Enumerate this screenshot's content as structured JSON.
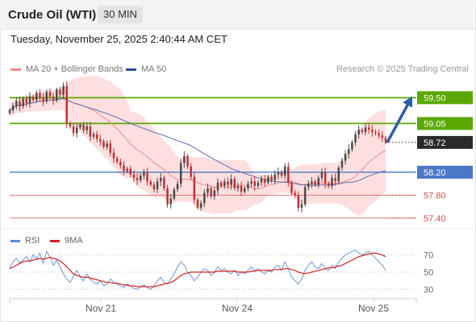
{
  "header": {
    "title": "Crude Oil (WTI)",
    "timeframe": "30 MIN",
    "timestamp": "Tuesday, November 25, 2025 2:40:44 AM CET"
  },
  "legend": {
    "items": [
      {
        "label": "MA 20 + Bollinger Bands",
        "color": "#f08c8c"
      },
      {
        "label": "MA 50",
        "color": "#2a4f8f"
      }
    ],
    "credit": "Research © 2025 Trading Central"
  },
  "sub_legend": {
    "items": [
      {
        "label": "RSI",
        "color": "#5b86d6"
      },
      {
        "label": "9MA",
        "color": "#d42020"
      }
    ]
  },
  "colors": {
    "up_candle": "#4a4a4a",
    "down_candle": "#c03030",
    "bollinger_fill": "#fdd9d9",
    "ma20": "#f08c8c",
    "ma50": "#5b6fb0",
    "resistance": "#5aa800",
    "pivot": "#4a78c8",
    "support": "#d85050",
    "arrow": "#2b5fa8",
    "current_price_bg": "#2b2b2b",
    "rsi": "#6f96da",
    "rsi_ma": "#d42020"
  },
  "chart_data": [
    {
      "type": "candlestick",
      "title": "Crude Oil (WTI)",
      "timeframe": "30 MIN",
      "x_ticks": [
        "Nov 21",
        "Nov 24",
        "Nov 25"
      ],
      "ylim": [
        57.3,
        59.8
      ],
      "levels": [
        {
          "value": 59.5,
          "label": "59.50",
          "kind": "resistance"
        },
        {
          "value": 59.05,
          "label": "59.05",
          "kind": "resistance"
        },
        {
          "value": 58.72,
          "label": "58.72",
          "kind": "current"
        },
        {
          "value": 58.2,
          "label": "58.20",
          "kind": "pivot"
        },
        {
          "value": 57.8,
          "label": "57.80",
          "kind": "support"
        },
        {
          "value": 57.4,
          "label": "57.40",
          "kind": "support"
        }
      ],
      "projection": {
        "from": 58.72,
        "to": 59.5
      },
      "closes": [
        59.28,
        59.36,
        59.44,
        59.35,
        59.48,
        59.4,
        59.52,
        59.46,
        59.58,
        59.5,
        59.44,
        59.6,
        59.52,
        59.45,
        59.64,
        59.55,
        59.7,
        59.05,
        59.0,
        58.88,
        58.98,
        59.03,
        58.93,
        59.0,
        58.82,
        58.86,
        58.78,
        58.74,
        58.64,
        58.7,
        58.54,
        58.44,
        58.38,
        58.32,
        58.22,
        58.26,
        58.16,
        58.1,
        58.06,
        58.14,
        58.2,
        58.04,
        57.98,
        57.9,
        58.04,
        58.1,
        57.92,
        57.64,
        57.74,
        57.9,
        58.0,
        58.36,
        58.48,
        58.3,
        58.12,
        57.72,
        57.58,
        57.66,
        57.84,
        57.92,
        57.78,
        57.88,
        58.02,
        57.96,
        58.04,
        57.98,
        58.08,
        57.92,
        57.96,
        57.86,
        57.92,
        58.0,
        58.04,
        57.96,
        58.02,
        58.08,
        58.02,
        58.12,
        58.06,
        58.16,
        58.2,
        58.14,
        58.3,
        58.02,
        57.84,
        57.8,
        57.58,
        57.64,
        57.94,
        58.0,
        58.04,
        57.98,
        58.1,
        58.2,
        58.0,
        57.96,
        58.1,
        58.04,
        58.28,
        58.4,
        58.52,
        58.6,
        58.72,
        58.86,
        58.94,
        58.9,
        58.98,
        58.94,
        58.9,
        58.88,
        58.84,
        58.8,
        58.72
      ]
    },
    {
      "type": "line",
      "title": "RSI",
      "series": [
        {
          "name": "RSI",
          "values": [
            55,
            62,
            66,
            60,
            64,
            68,
            62,
            70,
            66,
            72,
            60,
            74,
            68,
            58,
            64,
            56,
            48,
            42,
            38,
            45,
            52,
            44,
            40,
            48,
            42,
            38,
            36,
            40,
            34,
            36,
            42,
            38,
            36,
            34,
            32,
            36,
            34,
            31,
            30,
            33,
            35,
            32,
            30,
            34,
            40,
            44,
            38,
            36,
            42,
            48,
            56,
            62,
            58,
            50,
            46,
            40,
            44,
            50,
            54,
            52,
            46,
            50,
            56,
            52,
            54,
            50,
            48,
            52,
            46,
            50,
            48,
            52,
            56,
            52,
            54,
            50,
            48,
            52,
            50,
            56,
            58,
            52,
            62,
            54,
            44,
            40,
            36,
            42,
            52,
            58,
            62,
            56,
            54,
            60,
            54,
            52,
            58,
            54,
            62,
            66,
            70,
            72,
            74,
            76,
            72,
            70,
            72,
            74,
            70,
            66,
            62,
            58,
            52
          ]
        },
        {
          "name": "9MA",
          "values": [
            54,
            56,
            58,
            60,
            62,
            63,
            63,
            64,
            65,
            66,
            65,
            66,
            67,
            66,
            65,
            63,
            60,
            56,
            52,
            48,
            46,
            45,
            44,
            44,
            43,
            42,
            41,
            40,
            39,
            38,
            38,
            37,
            37,
            36,
            35,
            35,
            34,
            34,
            33,
            33,
            33,
            33,
            33,
            33,
            34,
            35,
            36,
            37,
            38,
            40,
            43,
            46,
            48,
            49,
            50,
            50,
            50,
            50,
            50,
            50,
            50,
            50,
            51,
            51,
            51,
            51,
            51,
            51,
            50,
            50,
            50,
            50,
            51,
            51,
            52,
            52,
            52,
            52,
            52,
            53,
            53,
            53,
            54,
            54,
            53,
            52,
            50,
            49,
            48,
            49,
            50,
            51,
            52,
            53,
            54,
            55,
            55,
            56,
            57,
            58,
            60,
            62,
            64,
            66,
            68,
            69,
            70,
            71,
            72,
            72,
            71,
            70,
            68
          ]
        }
      ],
      "yticks": [
        30,
        50,
        70
      ],
      "ylim": [
        20,
        80
      ],
      "x_ticks": [
        "Nov 21",
        "Nov 24",
        "Nov 25"
      ]
    }
  ]
}
